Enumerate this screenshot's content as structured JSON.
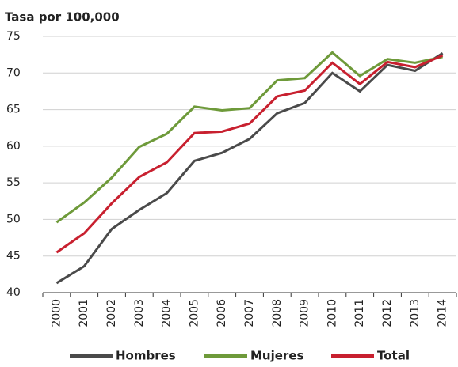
{
  "chart_data": {
    "type": "line",
    "title": "Tasa por 100,000",
    "categories": [
      "2000",
      "2001",
      "2002",
      "2003",
      "2004",
      "2005",
      "2006",
      "2007",
      "2008",
      "2009",
      "2010",
      "2011",
      "2012",
      "2013",
      "2014"
    ],
    "series": [
      {
        "name": "Hombres",
        "color": "#4a4a4a",
        "values": [
          41.3,
          43.6,
          48.7,
          51.3,
          53.6,
          58.0,
          59.1,
          61.0,
          64.5,
          65.9,
          70.0,
          67.5,
          71.1,
          70.3,
          72.7
        ]
      },
      {
        "name": "Mujeres",
        "color": "#6e9a3a",
        "values": [
          49.6,
          52.3,
          55.7,
          59.9,
          61.7,
          65.4,
          64.9,
          65.2,
          69.0,
          69.3,
          72.8,
          69.6,
          71.9,
          71.4,
          72.2
        ]
      },
      {
        "name": "Total",
        "color": "#c8202f",
        "values": [
          45.5,
          48.1,
          52.2,
          55.8,
          57.8,
          61.8,
          62.0,
          63.1,
          66.8,
          67.6,
          71.4,
          68.5,
          71.5,
          70.8,
          72.4
        ]
      }
    ],
    "ylim": [
      40,
      75
    ],
    "yticks": [
      40,
      45,
      50,
      55,
      60,
      65,
      70,
      75
    ],
    "grid": true,
    "legend": "bottom"
  }
}
